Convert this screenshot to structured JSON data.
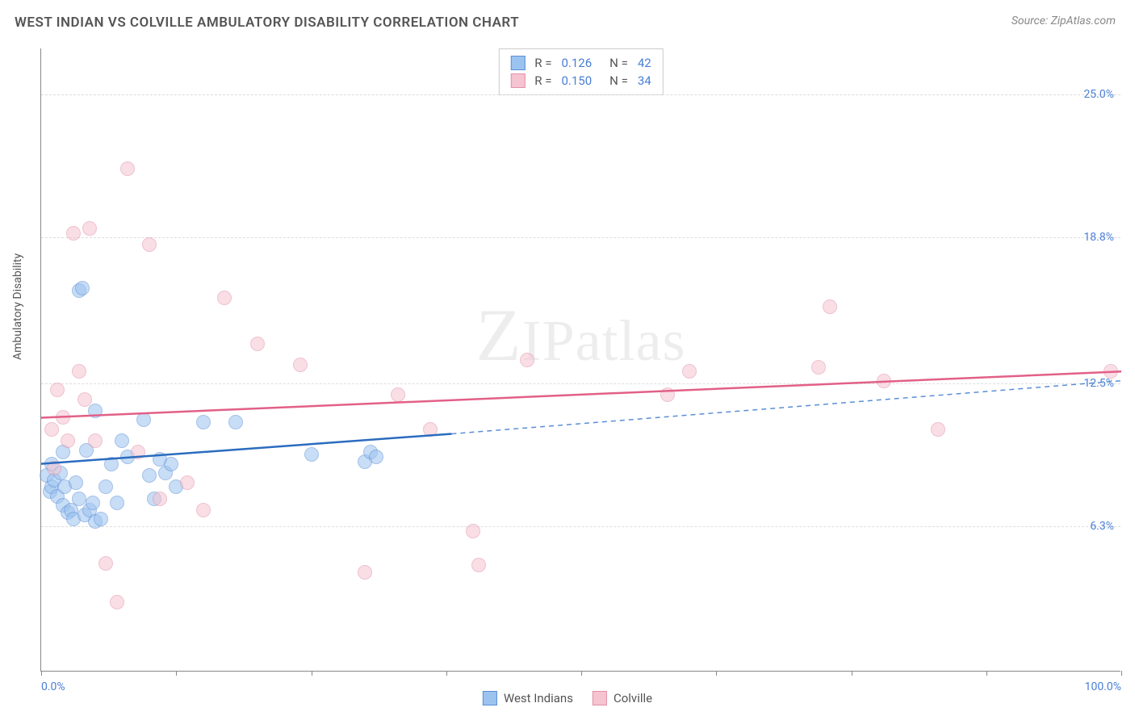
{
  "title": "WEST INDIAN VS COLVILLE AMBULATORY DISABILITY CORRELATION CHART",
  "source": "Source: ZipAtlas.com",
  "watermark": "ZIPatlas",
  "chart": {
    "type": "scatter",
    "ylabel": "Ambulatory Disability",
    "xlim": [
      0,
      100
    ],
    "ylim": [
      0,
      27
    ],
    "yticks": [
      {
        "value": 6.3,
        "label": "6.3%"
      },
      {
        "value": 12.5,
        "label": "12.5%"
      },
      {
        "value": 18.8,
        "label": "18.8%"
      },
      {
        "value": 25.0,
        "label": "25.0%"
      }
    ],
    "xticks_major": [
      0,
      100
    ],
    "xtick_labels": {
      "0": "0.0%",
      "100": "100.0%"
    },
    "xticks_minor": [
      12.5,
      25,
      37.5,
      50,
      62.5,
      75,
      87.5
    ],
    "grid_color": "#dddddd",
    "background_color": "#ffffff",
    "axis_color": "#888888",
    "tick_label_color": "#4a7fd6",
    "marker_radius": 9,
    "marker_opacity": 0.55,
    "marker_border_width": 1
  },
  "series": [
    {
      "name": "West Indians",
      "fill_color": "#9cc3f0",
      "border_color": "#5a8fd6",
      "R": "0.126",
      "N": "42",
      "trend": {
        "x1": 0,
        "y1": 9.0,
        "x2": 38,
        "y2": 10.3,
        "color": "#2b6cbf",
        "width": 2.5,
        "dash": false
      },
      "trend_ext": {
        "x1": 38,
        "y1": 10.3,
        "x2": 100,
        "y2": 12.6,
        "color": "#5a8fd6",
        "width": 1.5,
        "dash": true
      },
      "points": [
        [
          0.5,
          8.5
        ],
        [
          0.8,
          7.8
        ],
        [
          1.0,
          8.0
        ],
        [
          1.2,
          8.3
        ],
        [
          1.0,
          9.0
        ],
        [
          1.5,
          7.6
        ],
        [
          1.8,
          8.6
        ],
        [
          2.0,
          7.2
        ],
        [
          2.2,
          8.0
        ],
        [
          2.0,
          9.5
        ],
        [
          2.5,
          6.9
        ],
        [
          2.8,
          7.0
        ],
        [
          3.0,
          6.6
        ],
        [
          3.2,
          8.2
        ],
        [
          3.5,
          7.5
        ],
        [
          3.5,
          16.5
        ],
        [
          3.8,
          16.6
        ],
        [
          4.0,
          6.8
        ],
        [
          4.2,
          9.6
        ],
        [
          4.5,
          7.0
        ],
        [
          4.8,
          7.3
        ],
        [
          5.0,
          6.5
        ],
        [
          5.0,
          11.3
        ],
        [
          5.5,
          6.6
        ],
        [
          6.0,
          8.0
        ],
        [
          6.5,
          9.0
        ],
        [
          7.0,
          7.3
        ],
        [
          7.5,
          10.0
        ],
        [
          8.0,
          9.3
        ],
        [
          9.5,
          10.9
        ],
        [
          10.0,
          8.5
        ],
        [
          10.5,
          7.5
        ],
        [
          11.0,
          9.2
        ],
        [
          11.5,
          8.6
        ],
        [
          12.0,
          9.0
        ],
        [
          12.5,
          8.0
        ],
        [
          15.0,
          10.8
        ],
        [
          18.0,
          10.8
        ],
        [
          25.0,
          9.4
        ],
        [
          30.0,
          9.1
        ],
        [
          30.5,
          9.5
        ],
        [
          31.0,
          9.3
        ]
      ]
    },
    {
      "name": "Colville",
      "fill_color": "#f5c4d0",
      "border_color": "#e390a8",
      "R": "0.150",
      "N": "34",
      "trend": {
        "x1": 0,
        "y1": 11.0,
        "x2": 100,
        "y2": 13.0,
        "color": "#e26088",
        "width": 2.5,
        "dash": false
      },
      "points": [
        [
          1.0,
          10.5
        ],
        [
          1.2,
          8.8
        ],
        [
          1.5,
          12.2
        ],
        [
          2.0,
          11.0
        ],
        [
          2.5,
          10.0
        ],
        [
          3.0,
          19.0
        ],
        [
          3.5,
          13.0
        ],
        [
          4.0,
          11.8
        ],
        [
          4.5,
          19.2
        ],
        [
          5.0,
          10.0
        ],
        [
          6.0,
          4.7
        ],
        [
          7.0,
          3.0
        ],
        [
          8.0,
          21.8
        ],
        [
          9.0,
          9.5
        ],
        [
          10.0,
          18.5
        ],
        [
          11.0,
          7.5
        ],
        [
          13.5,
          8.2
        ],
        [
          15.0,
          7.0
        ],
        [
          17.0,
          16.2
        ],
        [
          20.0,
          14.2
        ],
        [
          24.0,
          13.3
        ],
        [
          30.0,
          4.3
        ],
        [
          33.0,
          12.0
        ],
        [
          36.0,
          10.5
        ],
        [
          40.0,
          6.1
        ],
        [
          40.5,
          4.6
        ],
        [
          45.0,
          13.5
        ],
        [
          58.0,
          12.0
        ],
        [
          60.0,
          13.0
        ],
        [
          72.0,
          13.2
        ],
        [
          73.0,
          15.8
        ],
        [
          78.0,
          12.6
        ],
        [
          83.0,
          10.5
        ],
        [
          99.0,
          13.0
        ]
      ]
    }
  ],
  "legend_top": {
    "rows": [
      {
        "swatch_fill": "#9cc3f0",
        "swatch_border": "#5a8fd6",
        "r_label": "R =",
        "r_value": "0.126",
        "n_label": "N =",
        "n_value": "42"
      },
      {
        "swatch_fill": "#f5c4d0",
        "swatch_border": "#e390a8",
        "r_label": "R =",
        "r_value": "0.150",
        "n_label": "N =",
        "n_value": "34"
      }
    ]
  },
  "legend_bottom": {
    "items": [
      {
        "swatch_fill": "#9cc3f0",
        "swatch_border": "#5a8fd6",
        "label": "West Indians"
      },
      {
        "swatch_fill": "#f5c4d0",
        "swatch_border": "#e390a8",
        "label": "Colville"
      }
    ]
  }
}
